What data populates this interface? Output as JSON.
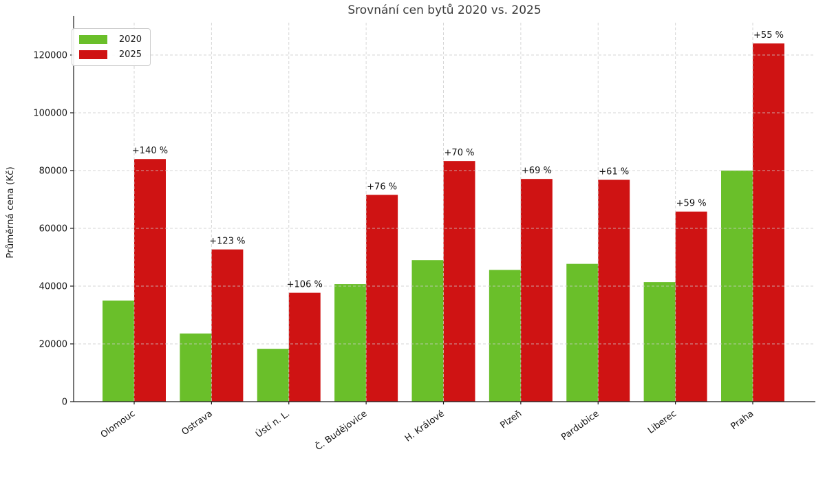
{
  "figure": {
    "title": "Srovnání cen bytů 2020 vs. 2025",
    "ylabel": "Průměrná cena (Kč)"
  },
  "chart_data": {
    "type": "bar",
    "title": "Srovnání cen bytů 2020 vs. 2025",
    "xlabel": "",
    "ylabel": "Průměrná cena (Kč)",
    "categories": [
      "Olomouc",
      "Ostrava",
      "Ústí n. L.",
      "Č. Budějovice",
      "H. Králové",
      "Plzeň",
      "Pardubice",
      "Liberec",
      "Praha"
    ],
    "series": [
      {
        "name": "2020",
        "color": "#6abf2a",
        "values": [
          35000,
          23600,
          18300,
          40700,
          49000,
          45600,
          47700,
          41400,
          80000
        ]
      },
      {
        "name": "2025",
        "color": "#cf1313",
        "values": [
          84000,
          52700,
          37700,
          71600,
          83300,
          77100,
          76800,
          65800,
          124000
        ]
      }
    ],
    "bar_labels_2025": [
      "+140 %",
      "+123 %",
      "+106 %",
      "+76 %",
      "+70 %",
      "+69 %",
      "+61 %",
      "+59 %",
      "+55 %"
    ],
    "yticks": [
      0,
      20000,
      40000,
      60000,
      80000,
      100000,
      120000
    ],
    "ylim": [
      0,
      131000
    ],
    "grid": "both-axes dashed",
    "grid_color": "#cccccc",
    "axis_color": "#1a1a1a",
    "legend_position": "upper left",
    "xtick_rotation_deg": 36
  }
}
